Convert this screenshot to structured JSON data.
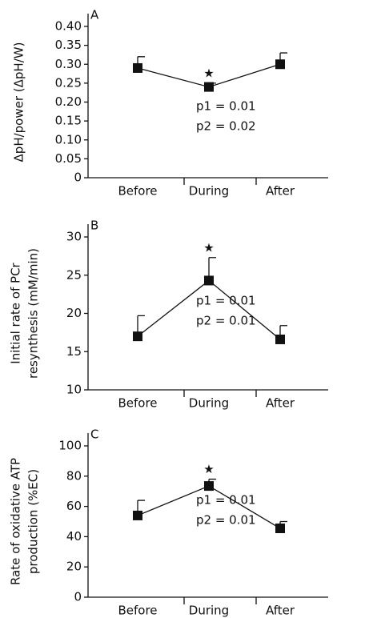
{
  "chart_data": [
    {
      "type": "line",
      "panel_label": "A",
      "y_label": [
        "ΔpH/power (ΔpH/W)"
      ],
      "categories": [
        "Before",
        "During",
        "After"
      ],
      "series": [
        {
          "color": "#111111",
          "values": [
            0.29,
            0.24,
            0.3
          ],
          "errors": [
            0.03,
            0.01,
            0.03
          ]
        }
      ],
      "ylim": [
        0,
        0.4
      ],
      "yticks": [
        0,
        0.05,
        {
          "value": 0.1,
          "label": "0.10"
        },
        0.15,
        {
          "value": 0.2,
          "label": "0.20"
        },
        0.25,
        {
          "value": 0.3,
          "label": "0.30"
        },
        0.35,
        {
          "value": 0.4,
          "label": "0.40"
        }
      ],
      "significance_marker": "★",
      "annotations": [
        "p1 = 0.01",
        "p2 = 0.02"
      ]
    },
    {
      "type": "line",
      "panel_label": "B",
      "y_label": [
        "Initial rate of PCr",
        "resynthesis (mM/min)"
      ],
      "categories": [
        "Before",
        "During",
        "After"
      ],
      "series": [
        {
          "color": "#111111",
          "values": [
            17,
            24.3,
            16.6
          ],
          "errors": [
            2.7,
            3.0,
            1.8
          ]
        }
      ],
      "ylim": [
        10,
        30
      ],
      "yticks": [
        10,
        15,
        20,
        25,
        30
      ],
      "significance_marker": "★",
      "annotations": [
        "p1 = 0.01",
        "p2 = 0.01"
      ]
    },
    {
      "type": "line",
      "panel_label": "C",
      "y_label": [
        "Rate of oxidative ATP",
        "production (%EC)"
      ],
      "categories": [
        "Before",
        "During",
        "After"
      ],
      "series": [
        {
          "color": "#111111",
          "values": [
            54,
            73.5,
            45.5
          ],
          "errors": [
            10,
            4.5,
            4.5
          ]
        }
      ],
      "ylim": [
        0,
        100
      ],
      "yticks": [
        0,
        20,
        40,
        60,
        80,
        100
      ],
      "significance_marker": "★",
      "annotations": [
        "p1 = 0.01",
        "p2 = 0.01"
      ]
    }
  ]
}
